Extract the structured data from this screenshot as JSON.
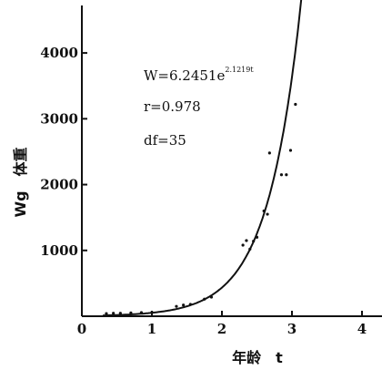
{
  "chart_data": {
    "type": "scatter",
    "title": "",
    "xlabel": "年龄　t",
    "ylabel": "Wg　体重",
    "xlim": [
      0,
      4
    ],
    "ylim": [
      0,
      4500
    ],
    "x_ticks": [
      "0",
      "1",
      "2",
      "3",
      "4"
    ],
    "y_ticks": [
      "1000",
      "2000",
      "3000",
      "4000"
    ],
    "x_tick_values": [
      0,
      1,
      2,
      3,
      4
    ],
    "y_tick_values": [
      1000,
      2000,
      3000,
      4000
    ],
    "grid": false,
    "annotations": [
      {
        "text": "W=6.2451e",
        "superscript": "2.1219t"
      },
      {
        "text": "r=0.978"
      },
      {
        "text": "df=35"
      }
    ],
    "points": [
      {
        "x": 0.35,
        "y": 40
      },
      {
        "x": 0.45,
        "y": 45
      },
      {
        "x": 0.55,
        "y": 45
      },
      {
        "x": 0.7,
        "y": 50
      },
      {
        "x": 0.85,
        "y": 55
      },
      {
        "x": 1.0,
        "y": 60
      },
      {
        "x": 1.35,
        "y": 150
      },
      {
        "x": 1.45,
        "y": 170
      },
      {
        "x": 1.55,
        "y": 180
      },
      {
        "x": 1.75,
        "y": 260
      },
      {
        "x": 1.85,
        "y": 290
      },
      {
        "x": 2.3,
        "y": 1080
      },
      {
        "x": 2.35,
        "y": 1150
      },
      {
        "x": 2.4,
        "y": 1020
      },
      {
        "x": 2.45,
        "y": 1140
      },
      {
        "x": 2.5,
        "y": 1200
      },
      {
        "x": 2.6,
        "y": 1600
      },
      {
        "x": 2.65,
        "y": 1550
      },
      {
        "x": 2.68,
        "y": 2480
      },
      {
        "x": 2.85,
        "y": 2150
      },
      {
        "x": 2.92,
        "y": 2150
      },
      {
        "x": 2.98,
        "y": 2520
      },
      {
        "x": 3.05,
        "y": 3220
      }
    ],
    "series": [
      {
        "type": "line",
        "equation": "W = 6.2451 e^(2.1219 t)",
        "x_start": 0.3,
        "x_end": 3.2
      }
    ]
  }
}
